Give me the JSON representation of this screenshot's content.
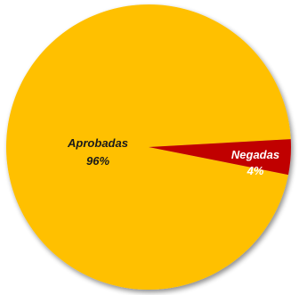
{
  "chart_data": {
    "type": "pie",
    "slices": [
      {
        "label": "Aprobadas",
        "value": 96,
        "value_label": "96%",
        "color": "#FFC000",
        "label_color": "#1A1A1A"
      },
      {
        "label": "Negadas",
        "value": 4,
        "value_label": "4%",
        "color": "#C00000",
        "label_color": "#FFFFFF"
      }
    ],
    "title": "",
    "legend": "none",
    "style": "3d-shadow"
  }
}
